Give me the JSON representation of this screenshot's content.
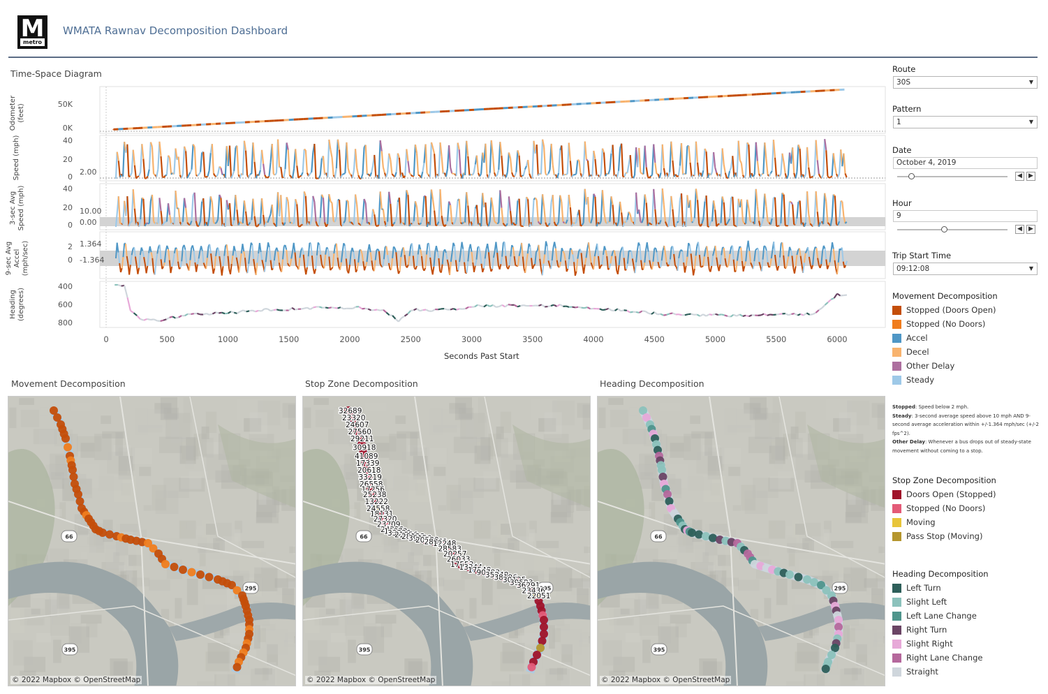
{
  "header": {
    "logo_letter": "M",
    "logo_word": "metro",
    "title": "WMATA Rawnav Decomposition Dashboard"
  },
  "timespace": {
    "title": "Time-Space Diagram",
    "xlabel": "Seconds Past Start",
    "xticks": [
      "0",
      "500",
      "1000",
      "1500",
      "2000",
      "2500",
      "3000",
      "3500",
      "4000",
      "4500",
      "5000",
      "5500",
      "6000"
    ],
    "panels": [
      {
        "ylabel_line1": "Odometer",
        "ylabel_line2": "(feet)",
        "ticks": [
          "50K",
          "0K"
        ],
        "ref_labels": []
      },
      {
        "ylabel_line1": "Speed (mph)",
        "ylabel_line2": "",
        "ticks": [
          "40",
          "20",
          "0"
        ],
        "ref_labels": [
          "2.00"
        ]
      },
      {
        "ylabel_line1": "3-sec Avg",
        "ylabel_line2": "Speed (mph)",
        "ticks": [
          "40",
          "20",
          "0"
        ],
        "ref_labels": [
          "10.00",
          "0.00"
        ]
      },
      {
        "ylabel_line1": "9-sec Avg",
        "ylabel_line2": "Accel",
        "ylabel_line3": "(mph/sec)",
        "ticks": [
          "2",
          "0"
        ],
        "ref_labels": [
          "1.364",
          "-1.364"
        ]
      },
      {
        "ylabel_line1": "Heading",
        "ylabel_line2": "(degrees)",
        "ticks": [
          "400",
          "600",
          "800"
        ],
        "ref_labels": []
      }
    ]
  },
  "maps": {
    "movement_title": "Movement Decomposition",
    "stopzone_title": "Stop Zone Decomposition",
    "heading_title": "Heading Decomposition",
    "attribution": "© 2022 Mapbox  © OpenStreetMap",
    "shield_295": "295",
    "shield_66": "66",
    "shield_395": "395",
    "stop_labels": [
      "32689",
      "23320",
      "24607",
      "27560",
      "29211",
      "30918",
      "41089",
      "17339",
      "20618",
      "33219",
      "26558",
      "17256",
      "25238",
      "13222",
      "24558",
      "18131",
      "27320",
      "23209",
      "24228",
      "16873",
      "33336",
      "21056",
      "28123",
      "39150",
      "20588",
      "28361",
      "12248",
      "28583",
      "20257",
      "26033",
      "17553",
      "13344",
      "17548",
      "90783",
      "35248",
      "38196",
      "30125",
      "39503",
      "36291",
      "23436",
      "22051"
    ]
  },
  "controls": {
    "route_label": "Route",
    "route_value": "30S",
    "pattern_label": "Pattern",
    "pattern_value": "1",
    "date_label": "Date",
    "date_value": "October 4, 2019",
    "hour_label": "Hour",
    "hour_value": "9",
    "trip_label": "Trip Start Time",
    "trip_value": "09:12:08",
    "prev_icon": "chevron-left",
    "next_icon": "chevron-right"
  },
  "legends": {
    "movement": {
      "title": "Movement Decomposition",
      "items": [
        {
          "label": "Stopped (Doors Open)",
          "color": "#c44e09"
        },
        {
          "label": "Stopped (No Doors)",
          "color": "#f07d1e"
        },
        {
          "label": "Accel",
          "color": "#4f97c6"
        },
        {
          "label": "Decel",
          "color": "#f8b36e"
        },
        {
          "label": "Other Delay",
          "color": "#ad6f9f"
        },
        {
          "label": "Steady",
          "color": "#9ec9e8"
        }
      ]
    },
    "notes": {
      "stopped_term": "Stopped",
      "stopped_text": ": Speed below 2 mph.",
      "steady_term": "Steady",
      "steady_text": ": 3-second average speed above 10 mph AND 9-second average acceleration within +/-1.364 mph/sec (+/-2 fps^2).",
      "other_term": "Other Delay",
      "other_text": ": Whenever a bus drops out of steady-state movement without coming to a stop."
    },
    "stopzone": {
      "title": "Stop Zone Decomposition",
      "items": [
        {
          "label": "Doors Open (Stopped)",
          "color": "#a0132a"
        },
        {
          "label": "Stopped (No Doors)",
          "color": "#e45b78"
        },
        {
          "label": "Moving",
          "color": "#e8c53a"
        },
        {
          "label": "Pass Stop (Moving)",
          "color": "#b5962e"
        }
      ]
    },
    "heading": {
      "title": "Heading Decomposition",
      "items": [
        {
          "label": "Left Turn",
          "color": "#2e5f5a"
        },
        {
          "label": "Slight Left",
          "color": "#8cc2bc"
        },
        {
          "label": "Left Lane Change",
          "color": "#4f958c"
        },
        {
          "label": "Right Turn",
          "color": "#6b4565"
        },
        {
          "label": "Slight Right",
          "color": "#e7a9d8"
        },
        {
          "label": "Right Lane Change",
          "color": "#b5689c"
        },
        {
          "label": "Straight",
          "color": "#cfd6dc"
        }
      ]
    }
  }
}
